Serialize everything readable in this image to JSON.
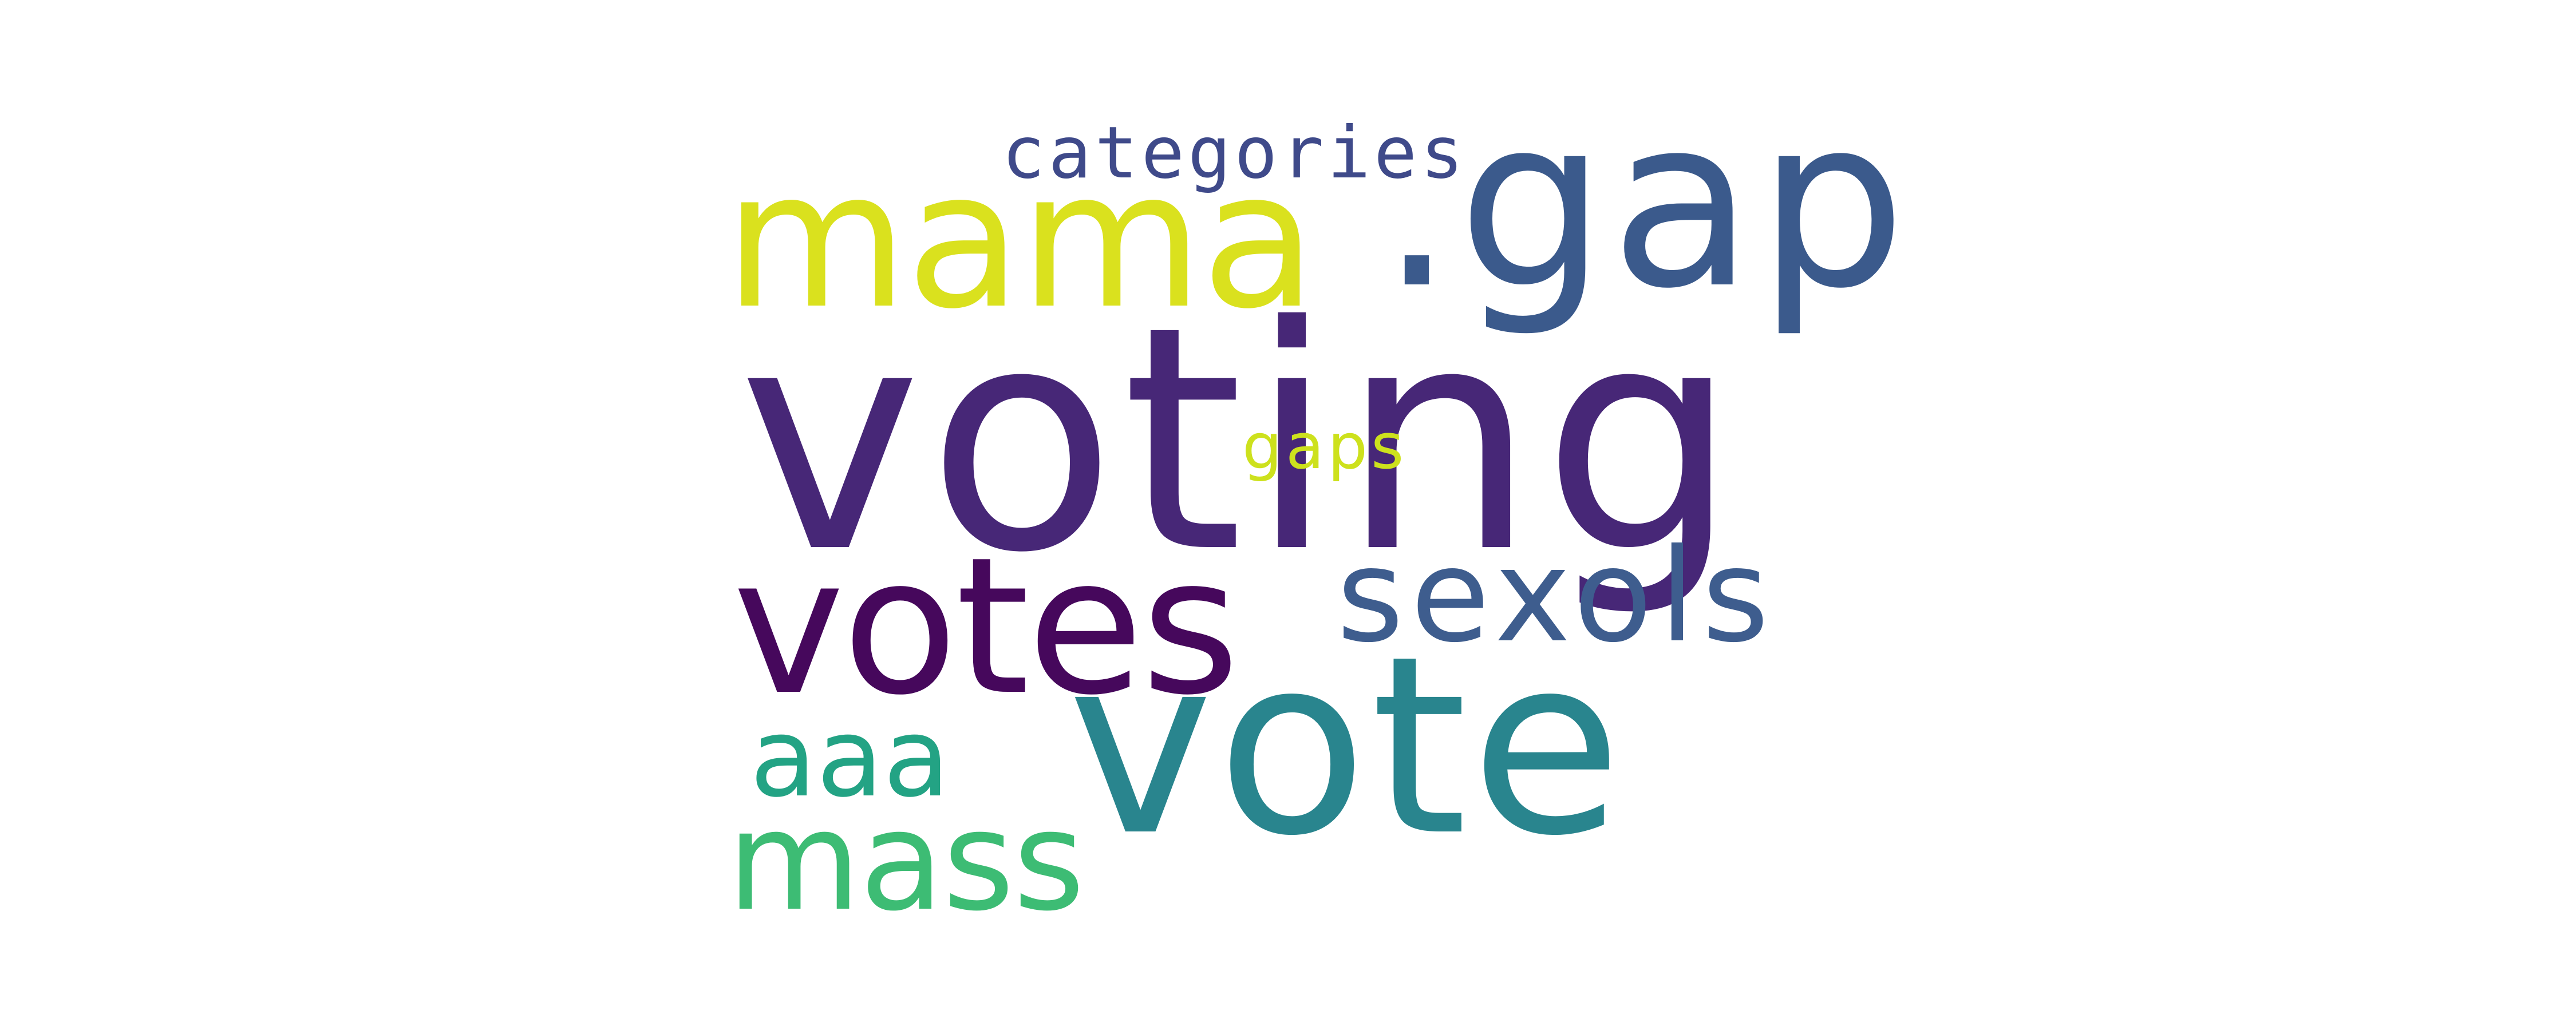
{
  "word_cloud": {
    "words": [
      {
        "text": "voting",
        "color": "#472777"
      },
      {
        "text": "vote",
        "color": "#29858e"
      },
      {
        "text": ".gap",
        "color": "#3b5a8c"
      },
      {
        "text": "votes",
        "color": "#46085c"
      },
      {
        "text": "mama",
        "color": "#dae11e"
      },
      {
        "text": "mass",
        "color": "#3dbc74"
      },
      {
        "text": "sexols",
        "color": "#3e5d8e"
      },
      {
        "text": "aaa",
        "color": "#23a384"
      },
      {
        "text": "categories",
        "color": "#3f4a8a"
      },
      {
        "text": "gaps",
        "color": "#cde11d"
      }
    ]
  }
}
